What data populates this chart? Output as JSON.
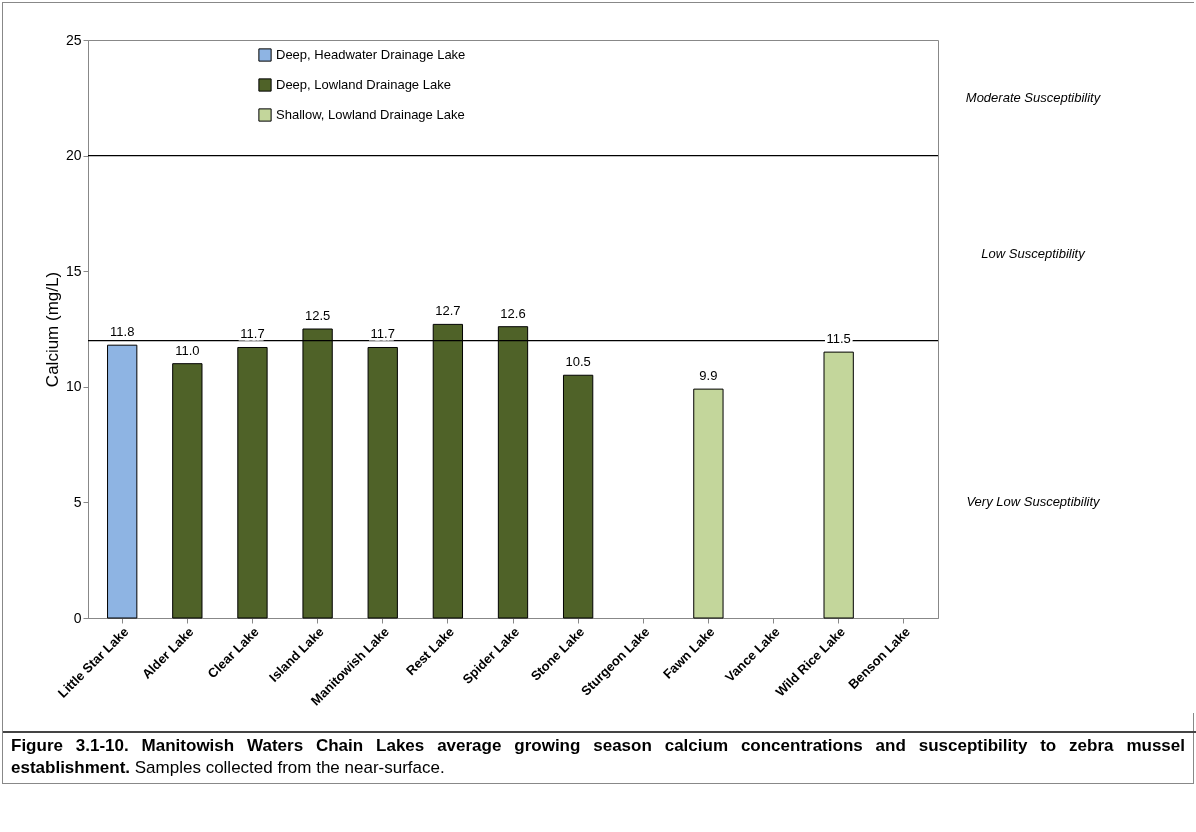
{
  "chart_data": {
    "type": "bar",
    "ylabel": "Calcium (mg/L)",
    "categories": [
      "Little Star Lake",
      "Alder Lake",
      "Clear Lake",
      "Island Lake",
      "Manitowish Lake",
      "Rest Lake",
      "Spider Lake",
      "Stone Lake",
      "Sturgeon Lake",
      "Fawn Lake",
      "Vance Lake",
      "Wild Rice Lake",
      "Benson Lake"
    ],
    "series": [
      {
        "name": "Deep, Headwater Drainage Lake",
        "color": "#8eb4e3",
        "values": [
          11.8,
          null,
          null,
          null,
          null,
          null,
          null,
          null,
          null,
          null,
          null,
          null,
          null
        ]
      },
      {
        "name": "Deep, Lowland Drainage Lake",
        "color": "#4f6228",
        "values": [
          null,
          11.0,
          11.7,
          12.5,
          11.7,
          12.7,
          12.6,
          10.5,
          null,
          null,
          null,
          null,
          null
        ]
      },
      {
        "name": "Shallow, Lowland Drainage Lake",
        "color": "#c3d69b",
        "values": [
          null,
          null,
          null,
          null,
          null,
          null,
          null,
          null,
          null,
          9.9,
          null,
          11.5,
          null
        ]
      }
    ],
    "value_labels": [
      "11.8",
      "11.0",
      "11.7",
      "12.5",
      "11.7",
      "12.7",
      "12.6",
      "10.5",
      null,
      "9.9",
      null,
      "11.5",
      null
    ],
    "ylim": [
      0,
      25
    ],
    "yticks": [
      0,
      5,
      10,
      15,
      20,
      25
    ],
    "grid": false,
    "legend": "top",
    "ref_lines": [
      {
        "axis": "y",
        "value": 20,
        "label": null
      },
      {
        "axis": "y",
        "value": 12,
        "label": null
      }
    ],
    "annotations": [
      "Moderate Susceptibility",
      "Low Susceptibility",
      "Very Low Susceptibility",
      "Figure 3.1-10.    Manitowish Waters Chain Lakes average growing season calcium concentrations and susceptibility to zebra mussel establishment.",
      "Samples collected from the near-surface."
    ]
  }
}
